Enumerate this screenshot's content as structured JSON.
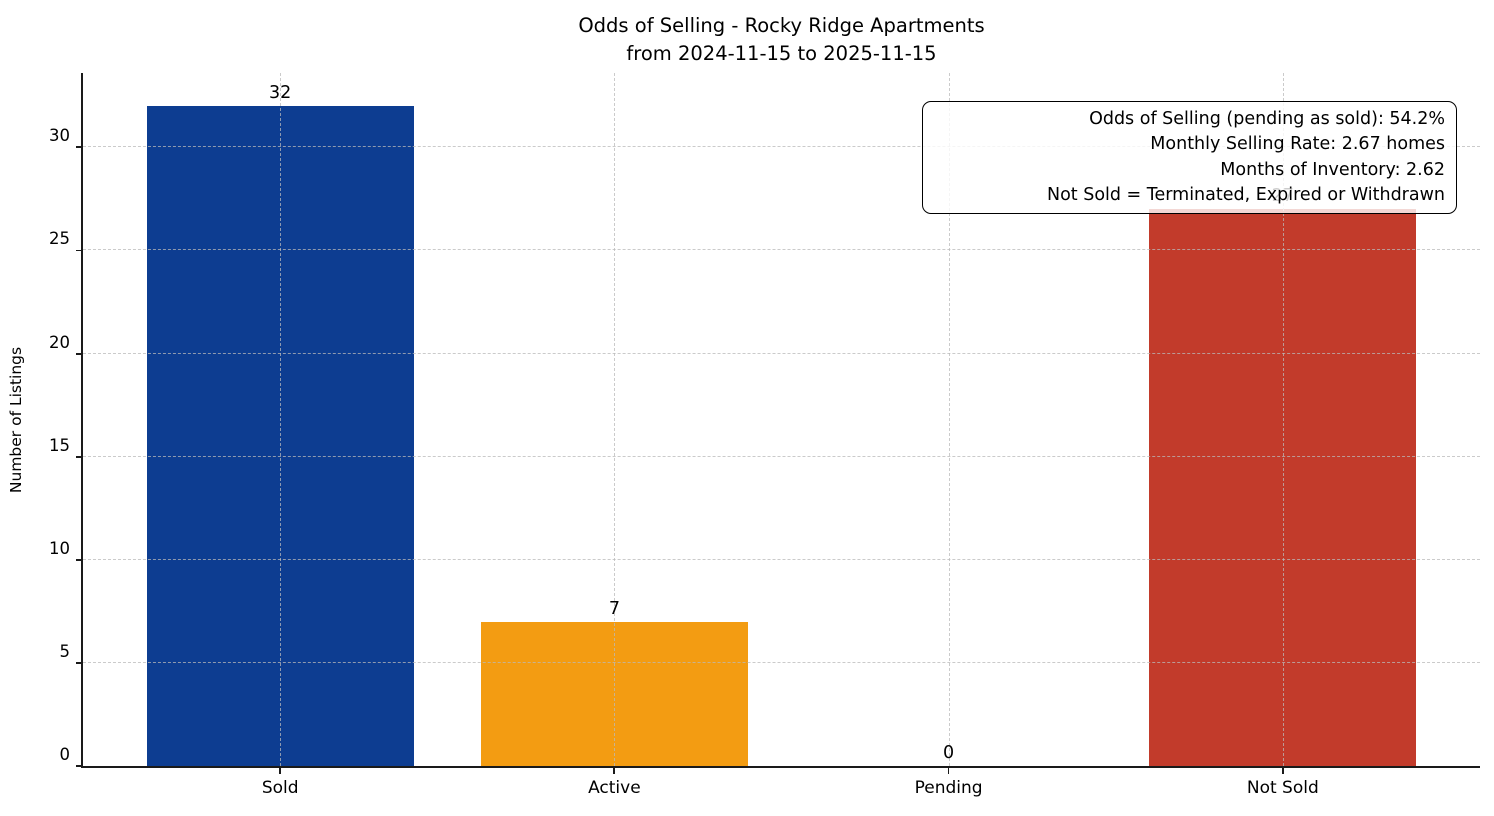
{
  "chart_data": {
    "type": "bar",
    "title": "Odds of Selling - Rocky Ridge Apartments",
    "subtitle": "from 2024-11-15 to 2025-11-15",
    "xlabel": "",
    "ylabel": "Number of Listings",
    "categories": [
      "Sold",
      "Active",
      "Pending",
      "Not Sold"
    ],
    "values": [
      32,
      7,
      0,
      27
    ],
    "value_labels": [
      "32",
      "7",
      "0",
      "27"
    ],
    "bar_colors": [
      "#0d3d91",
      "#f39c12",
      "#999999",
      "#c23b2b"
    ],
    "yticks": [
      0,
      5,
      10,
      15,
      20,
      25,
      30
    ],
    "ylim": [
      0,
      33.6
    ],
    "grid": "dashed, light gray, horizontal at yticks and vertical at category centers",
    "legend_position": "none",
    "annotation": {
      "lines": [
        "Odds of Selling (pending as sold): 54.2%",
        "Monthly Selling Rate: 2.67 homes",
        "Months of Inventory: 2.62",
        "Not Sold = Terminated, Expired or Withdrawn"
      ]
    }
  }
}
